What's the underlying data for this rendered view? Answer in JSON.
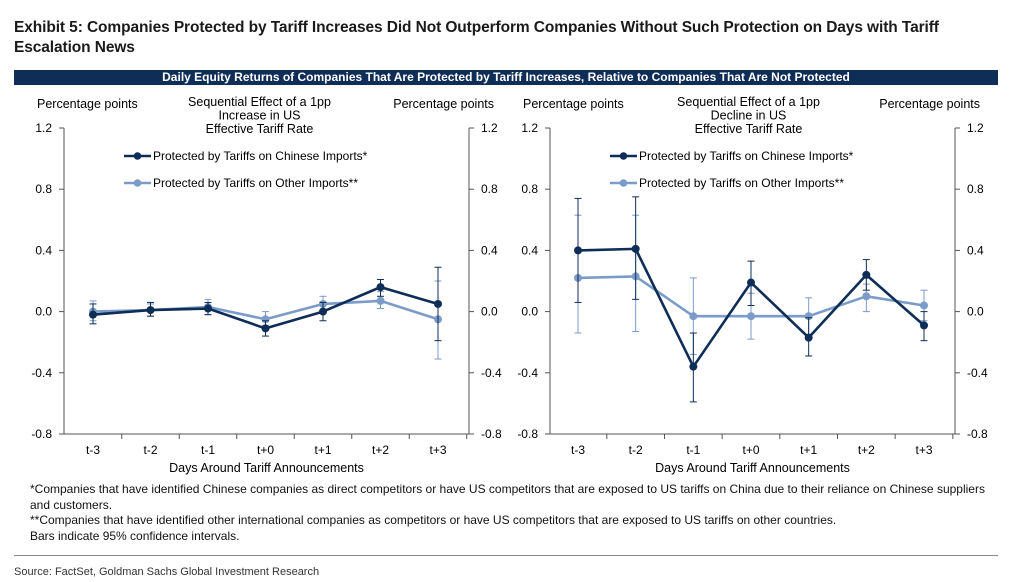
{
  "exhibit_title": "Exhibit 5: Companies Protected by Tariff Increases Did Not Outperform Companies Without Such Protection on Days with Tariff Escalation News",
  "banner": "Daily Equity Returns of Companies That Are Protected by Tariff Increases, Relative to Companies That Are Not Protected",
  "notes": [
    "*Companies that have identified Chinese companies as direct competitors or have US competitors that are exposed to US tariffs on China due to their reliance on Chinese suppliers and customers.",
    "**Companies that have identified other international companies as competitors or have US competitors that are exposed to US tariffs on other countries.",
    "Bars indicate 95% confidence intervals."
  ],
  "source": "Source: FactSet, Goldman Sachs Global Investment Research",
  "colors": {
    "china": "#0e2d57",
    "other": "#7b9cc8",
    "banner": "#0e2d57",
    "axis": "#555555"
  },
  "chart_data": [
    {
      "type": "line",
      "title": "Sequential Effect of a 1pp Increase in US Effective Tariff Rate",
      "title_lines": [
        "Sequential Effect of a 1pp",
        "Increase in US",
        "Effective Tariff Rate"
      ],
      "ylabel_left": "Percentage points",
      "ylabel_right": "Percentage points",
      "xlabel": "Days Around Tariff Announcements",
      "categories": [
        "t-3",
        "t-2",
        "t-1",
        "t+0",
        "t+1",
        "t+2",
        "t+3"
      ],
      "ylim": [
        -0.8,
        1.2
      ],
      "yticks": [
        "1.2",
        "0.8",
        "0.4",
        "0.0",
        "-0.4",
        "-0.8"
      ],
      "ytick_values": [
        1.2,
        0.8,
        0.4,
        0.0,
        -0.4,
        -0.8
      ],
      "legend_position": "top-left",
      "series": [
        {
          "name": "Protected by Tariffs on Chinese Imports*",
          "color": "#0e2d57",
          "values": [
            -0.02,
            0.01,
            0.02,
            -0.11,
            0.0,
            0.16,
            0.05
          ],
          "ci_low": [
            -0.08,
            -0.03,
            -0.02,
            -0.16,
            -0.06,
            0.1,
            -0.19
          ],
          "ci_high": [
            0.05,
            0.06,
            0.06,
            -0.06,
            0.06,
            0.21,
            0.29
          ]
        },
        {
          "name": "Protected by Tariffs on Other Imports**",
          "color": "#7b9cc8",
          "values": [
            0.0,
            0.01,
            0.03,
            -0.05,
            0.05,
            0.07,
            -0.05
          ],
          "ci_low": [
            -0.06,
            -0.03,
            -0.02,
            -0.09,
            0.0,
            0.02,
            -0.31
          ],
          "ci_high": [
            0.07,
            0.05,
            0.08,
            0.0,
            0.1,
            0.13,
            0.2
          ]
        }
      ]
    },
    {
      "type": "line",
      "title": "Sequential Effect of a 1pp Decline in US Effective Tariff Rate",
      "title_lines": [
        "Sequential Effect of a 1pp",
        "Decline in US",
        "Effective Tariff Rate"
      ],
      "ylabel_left": "Percentage points",
      "ylabel_right": "Percentage points",
      "xlabel": "Days Around Tariff Announcements",
      "categories": [
        "t-3",
        "t-2",
        "t-1",
        "t+0",
        "t+1",
        "t+2",
        "t+3"
      ],
      "ylim": [
        -0.8,
        1.2
      ],
      "yticks": [
        "1.2",
        "0.8",
        "0.4",
        "0.0",
        "-0.4",
        "-0.8"
      ],
      "ytick_values": [
        1.2,
        0.8,
        0.4,
        0.0,
        -0.4,
        -0.8
      ],
      "legend_position": "top-left",
      "series": [
        {
          "name": "Protected by Tariffs on Chinese Imports*",
          "color": "#0e2d57",
          "values": [
            0.4,
            0.41,
            -0.36,
            0.19,
            -0.17,
            0.24,
            -0.09
          ],
          "ci_low": [
            0.06,
            0.08,
            -0.59,
            0.04,
            -0.29,
            0.14,
            -0.19
          ],
          "ci_high": [
            0.74,
            0.75,
            -0.14,
            0.33,
            -0.04,
            0.34,
            0.0
          ]
        },
        {
          "name": "Protected by Tariffs on Other Imports**",
          "color": "#7b9cc8",
          "values": [
            0.22,
            0.23,
            -0.03,
            -0.03,
            -0.03,
            0.1,
            0.04
          ],
          "ci_low": [
            -0.14,
            -0.13,
            -0.28,
            -0.18,
            -0.15,
            0.0,
            -0.06
          ],
          "ci_high": [
            0.63,
            0.63,
            0.22,
            0.12,
            0.09,
            0.18,
            0.14
          ]
        }
      ]
    }
  ]
}
